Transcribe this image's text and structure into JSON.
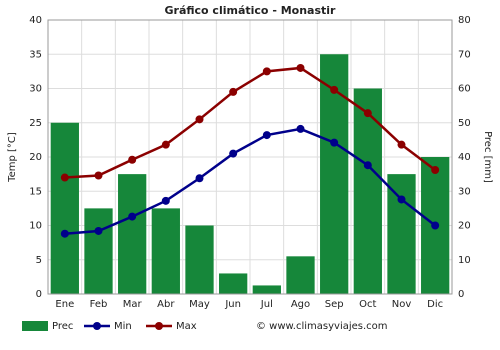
{
  "chart_data": {
    "type": "bar",
    "title": "Gráfico climático - Monastir",
    "categories": [
      "Ene",
      "Feb",
      "Mar",
      "Abr",
      "May",
      "Jun",
      "Jul",
      "Ago",
      "Sep",
      "Oct",
      "Nov",
      "Dic"
    ],
    "y_label": "Temp [°C]",
    "y2_label": "Prec [mm]",
    "ylim": [
      0,
      40
    ],
    "yticks": [
      0,
      5,
      10,
      15,
      20,
      25,
      30,
      35,
      40
    ],
    "y2lim": [
      0,
      80
    ],
    "y2ticks": [
      0,
      10,
      20,
      30,
      40,
      50,
      60,
      70,
      80
    ],
    "grid": true,
    "series": [
      {
        "name": "Prec",
        "type": "bar",
        "axis": "y2",
        "color": "#16873a",
        "values": [
          50,
          25,
          35,
          25,
          20,
          6,
          2.5,
          11,
          70,
          60,
          35,
          40
        ]
      },
      {
        "name": "Min",
        "type": "line",
        "color": "#00008b",
        "values": [
          8.8,
          9.2,
          11.3,
          13.6,
          16.9,
          20.5,
          23.2,
          24.1,
          22.1,
          18.8,
          13.8,
          10.0
        ]
      },
      {
        "name": "Max",
        "type": "line",
        "color": "#8b0000",
        "values": [
          17.0,
          17.3,
          19.6,
          21.8,
          25.5,
          29.5,
          32.5,
          33.0,
          29.8,
          26.4,
          21.8,
          18.1
        ]
      }
    ],
    "credit": "© www.climasyviajes.com"
  }
}
